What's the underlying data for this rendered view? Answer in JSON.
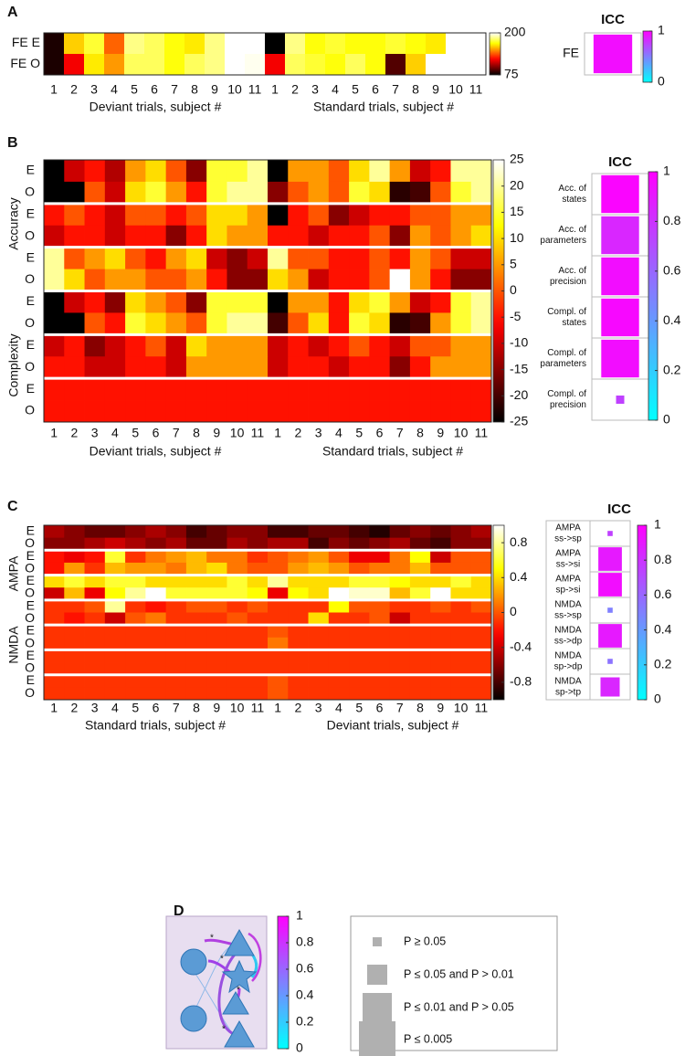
{
  "chart_data": [
    {
      "type": "heatmap",
      "panel_label": "A",
      "colormap": "hot",
      "row_labels": [
        "FE E",
        "FE O"
      ],
      "categories": [
        "1",
        "2",
        "3",
        "4",
        "5",
        "6",
        "7",
        "8",
        "9",
        "10",
        "11",
        "1",
        "2",
        "3",
        "4",
        "5",
        "6",
        "7",
        "8",
        "9",
        "10",
        "11"
      ],
      "x_group_labels": [
        "Deviant trials, subject #",
        "Standard trials, subject #"
      ],
      "row_separators": false,
      "values": [
        [
          80,
          160,
          175,
          140,
          185,
          180,
          170,
          165,
          185,
          200,
          200,
          75,
          185,
          170,
          175,
          170,
          170,
          175,
          170,
          165,
          200,
          200
        ],
        [
          80,
          120,
          165,
          150,
          180,
          180,
          170,
          180,
          185,
          200,
          198,
          120,
          180,
          175,
          170,
          180,
          170,
          90,
          160,
          200,
          200,
          200
        ]
      ],
      "zlim": [
        75,
        200
      ],
      "zticks": [
        75,
        200
      ]
    },
    {
      "type": "icc",
      "title": "ICC",
      "colormap": "cool",
      "labels": [
        [
          "FE"
        ]
      ],
      "values": [
        0.95
      ],
      "p_class": [
        3
      ],
      "clim": [
        0,
        1
      ],
      "cticks": [
        0,
        1
      ]
    },
    {
      "type": "heatmap",
      "panel_label": "B",
      "colormap": "hot",
      "row_labels": [
        "E",
        "O",
        "E",
        "O",
        "E",
        "O",
        "E",
        "O",
        "E",
        "O",
        "E",
        "O"
      ],
      "row_group_labels": [
        "Accuracy",
        "Complexity"
      ],
      "categories": [
        "1",
        "2",
        "3",
        "4",
        "5",
        "6",
        "7",
        "8",
        "9",
        "10",
        "11",
        "1",
        "2",
        "3",
        "4",
        "5",
        "6",
        "7",
        "8",
        "9",
        "10",
        "11"
      ],
      "x_group_labels": [
        "Deviant trials, subject #",
        "Standard trials, subject #"
      ],
      "row_separators": true,
      "values": [
        [
          -25,
          -10,
          -5,
          -12,
          5,
          10,
          0,
          -15,
          15,
          15,
          20,
          -25,
          5,
          5,
          0,
          10,
          20,
          5,
          -10,
          -5,
          20,
          20
        ],
        [
          -25,
          -25,
          0,
          -10,
          10,
          15,
          5,
          -5,
          15,
          20,
          20,
          -15,
          0,
          5,
          0,
          15,
          10,
          -22,
          -20,
          0,
          15,
          20
        ],
        [
          -5,
          0,
          -5,
          -10,
          0,
          0,
          -5,
          0,
          10,
          10,
          5,
          -25,
          -5,
          0,
          -15,
          -10,
          -5,
          -5,
          0,
          0,
          5,
          5
        ],
        [
          -10,
          -5,
          -5,
          -10,
          -5,
          -5,
          -15,
          -5,
          10,
          5,
          5,
          -5,
          -5,
          -10,
          -5,
          -5,
          0,
          -15,
          5,
          0,
          5,
          10
        ],
        [
          20,
          0,
          5,
          10,
          0,
          -5,
          5,
          10,
          -10,
          -15,
          -10,
          20,
          0,
          0,
          -5,
          -5,
          0,
          -5,
          5,
          0,
          -10,
          -10
        ],
        [
          20,
          10,
          0,
          5,
          5,
          0,
          0,
          5,
          -5,
          -15,
          -15,
          10,
          5,
          -10,
          -5,
          -5,
          0,
          25,
          5,
          -5,
          -15,
          -15
        ],
        [
          -25,
          -10,
          -5,
          -15,
          10,
          5,
          0,
          -15,
          15,
          15,
          15,
          -25,
          5,
          5,
          -5,
          10,
          15,
          5,
          -10,
          -5,
          15,
          20
        ],
        [
          -25,
          -25,
          0,
          -5,
          15,
          10,
          5,
          0,
          15,
          20,
          20,
          -20,
          0,
          10,
          -5,
          15,
          10,
          -22,
          -20,
          5,
          15,
          20
        ],
        [
          -10,
          -5,
          -15,
          -10,
          -5,
          0,
          -10,
          10,
          5,
          5,
          5,
          -10,
          -5,
          -10,
          -5,
          0,
          -5,
          -10,
          0,
          0,
          5,
          5
        ],
        [
          -5,
          -5,
          -10,
          -10,
          -5,
          -5,
          -10,
          5,
          5,
          5,
          5,
          -10,
          -5,
          -5,
          -10,
          -5,
          -5,
          -15,
          -5,
          5,
          5,
          5
        ],
        [
          -5,
          -5,
          -5,
          -5,
          -5,
          -5,
          -5,
          -5,
          -5,
          -5,
          -5,
          -5,
          -5,
          -5,
          -5,
          -5,
          -5,
          -5,
          -5,
          -5,
          -5,
          -5
        ],
        [
          -5,
          -5,
          -5,
          -5,
          -5,
          -5,
          -5,
          -5,
          -5,
          -5,
          -5,
          -5,
          -5,
          -5,
          -5,
          -5,
          -5,
          -5,
          -5,
          -5,
          -5,
          -5
        ]
      ],
      "zlim": [
        -25,
        25
      ],
      "zticks": [
        -25,
        -20,
        -15,
        -10,
        -5,
        0,
        5,
        10,
        15,
        20,
        25
      ]
    },
    {
      "type": "icc",
      "title": "ICC",
      "colormap": "cool",
      "labels": [
        [
          "Acc. of",
          "states"
        ],
        [
          "Acc. of",
          "parameters"
        ],
        [
          "Acc. of",
          "precision"
        ],
        [
          "Compl. of",
          "states"
        ],
        [
          "Compl. of",
          "parameters"
        ],
        [
          "Compl. of",
          "precision"
        ]
      ],
      "values": [
        0.98,
        0.85,
        0.95,
        0.97,
        0.95,
        0.75
      ],
      "p_class": [
        3,
        3,
        3,
        3,
        3,
        0
      ],
      "clim": [
        0,
        1
      ],
      "cticks": [
        0,
        0.2,
        0.4,
        0.6,
        0.8,
        1
      ]
    },
    {
      "type": "heatmap",
      "panel_label": "C",
      "colormap": "hot",
      "row_labels": [
        "E",
        "O",
        "E",
        "O",
        "E",
        "O",
        "E",
        "O",
        "E",
        "O",
        "E",
        "O",
        "E",
        "O"
      ],
      "row_group_labels": [
        "AMPA",
        "NMDA"
      ],
      "categories": [
        "1",
        "2",
        "3",
        "4",
        "5",
        "6",
        "7",
        "8",
        "9",
        "10",
        "11",
        "1",
        "2",
        "3",
        "4",
        "5",
        "6",
        "7",
        "8",
        "9",
        "10",
        "11"
      ],
      "x_group_labels": [
        "Standard trials, subject #",
        "Deviant trials, subject #"
      ],
      "row_separators": true,
      "values": [
        [
          -0.5,
          -0.6,
          -0.7,
          -0.7,
          -0.6,
          -0.5,
          -0.6,
          -0.8,
          -0.7,
          -0.6,
          -0.6,
          -0.8,
          -0.8,
          -0.7,
          -0.7,
          -0.8,
          -0.9,
          -0.7,
          -0.6,
          -0.7,
          -0.6,
          -0.5
        ],
        [
          -0.6,
          -0.6,
          -0.5,
          -0.4,
          -0.5,
          -0.6,
          -0.5,
          -0.7,
          -0.7,
          -0.5,
          -0.6,
          -0.5,
          -0.5,
          -0.8,
          -0.6,
          -0.7,
          -0.6,
          -0.5,
          -0.7,
          -0.8,
          -0.6,
          -0.6
        ],
        [
          -0.2,
          -0.3,
          -0.2,
          0.6,
          -0.1,
          0.1,
          0.2,
          0.3,
          0.1,
          0.1,
          -0.1,
          0,
          0.1,
          0.2,
          0,
          -0.3,
          -0.3,
          0.1,
          0.5,
          -0.4,
          0,
          0
        ],
        [
          -0.2,
          0.2,
          -0.1,
          0.3,
          0.2,
          0.2,
          0.1,
          0.3,
          0.4,
          0.1,
          0,
          0,
          0.2,
          0.3,
          0.2,
          0,
          0.1,
          0.1,
          0.3,
          0,
          0,
          0
        ],
        [
          0.4,
          0.6,
          0.4,
          0.6,
          0.6,
          0.4,
          0.4,
          0.4,
          0.4,
          0.6,
          0.4,
          0.8,
          0.4,
          0.4,
          0.4,
          0.6,
          0.6,
          0.5,
          0.4,
          0.4,
          0.6,
          0.4
        ],
        [
          -0.4,
          0.3,
          -0.3,
          0.5,
          0.8,
          1,
          0.6,
          0.6,
          0.6,
          0.6,
          0.5,
          -0.3,
          0.5,
          0.4,
          1,
          0.9,
          0.9,
          0.3,
          0.6,
          1,
          0.4,
          0.4
        ],
        [
          -0.1,
          -0.1,
          0,
          0.8,
          -0.1,
          -0.2,
          -0.1,
          0,
          0,
          -0.1,
          0,
          -0.1,
          -0.1,
          -0.1,
          0.5,
          0,
          0,
          -0.1,
          -0.1,
          0,
          -0.1,
          0
        ],
        [
          -0.1,
          -0.2,
          -0.1,
          -0.4,
          0,
          0.1,
          -0.1,
          -0.1,
          -0.1,
          0,
          -0.1,
          -0.1,
          -0.1,
          0.4,
          -0.1,
          -0.1,
          0,
          -0.4,
          -0.1,
          -0.1,
          -0.1,
          -0.1
        ],
        [
          -0.1,
          -0.1,
          -0.1,
          -0.1,
          -0.1,
          -0.1,
          -0.1,
          -0.1,
          -0.1,
          -0.1,
          -0.1,
          0,
          -0.1,
          -0.1,
          -0.1,
          -0.1,
          -0.1,
          -0.1,
          -0.1,
          -0.1,
          -0.1,
          -0.1
        ],
        [
          -0.1,
          -0.1,
          -0.1,
          -0.1,
          -0.1,
          -0.1,
          -0.1,
          -0.1,
          -0.1,
          -0.1,
          -0.1,
          0.1,
          -0.1,
          -0.1,
          -0.1,
          -0.1,
          -0.1,
          -0.1,
          -0.1,
          -0.1,
          -0.1,
          -0.1
        ],
        [
          -0.1,
          -0.1,
          -0.1,
          -0.1,
          -0.1,
          -0.1,
          -0.1,
          -0.1,
          -0.1,
          -0.1,
          -0.1,
          -0.1,
          -0.1,
          -0.1,
          -0.1,
          -0.1,
          -0.1,
          -0.1,
          -0.1,
          -0.1,
          -0.1,
          -0.1
        ],
        [
          -0.1,
          -0.1,
          -0.1,
          -0.1,
          -0.1,
          -0.1,
          -0.1,
          -0.1,
          -0.1,
          -0.1,
          -0.1,
          -0.1,
          -0.1,
          -0.1,
          -0.1,
          -0.1,
          -0.1,
          -0.1,
          -0.1,
          -0.1,
          -0.1,
          -0.1
        ],
        [
          -0.1,
          -0.1,
          -0.1,
          -0.1,
          -0.1,
          -0.1,
          -0.1,
          -0.1,
          -0.1,
          -0.1,
          -0.1,
          0,
          -0.1,
          -0.1,
          -0.1,
          -0.1,
          -0.1,
          -0.1,
          -0.1,
          -0.1,
          -0.1,
          -0.1
        ],
        [
          -0.1,
          -0.1,
          -0.1,
          -0.1,
          -0.1,
          -0.1,
          -0.1,
          -0.1,
          -0.1,
          -0.1,
          -0.1,
          0,
          -0.1,
          -0.1,
          -0.1,
          -0.1,
          -0.1,
          -0.1,
          -0.1,
          -0.1,
          -0.1,
          -0.1
        ]
      ],
      "zlim": [
        -1,
        1
      ],
      "zticks": [
        -0.8,
        -0.4,
        0,
        0.4,
        0.8
      ]
    },
    {
      "type": "icc",
      "title": "ICC",
      "colormap": "cool",
      "labels": [
        [
          "AMPA",
          "ss->sp"
        ],
        [
          "AMPA",
          "ss->si"
        ],
        [
          "AMPA",
          "sp->si"
        ],
        [
          "NMDA",
          "ss->sp"
        ],
        [
          "NMDA",
          "ss->dp"
        ],
        [
          "NMDA",
          "sp->dp"
        ],
        [
          "NMDA",
          "sp->tp"
        ]
      ],
      "values": [
        0.75,
        0.9,
        0.95,
        0.5,
        0.9,
        0.55,
        0.85
      ],
      "p_class": [
        0,
        3,
        3,
        0,
        3,
        0,
        2
      ],
      "clim": [
        0,
        1
      ],
      "cticks": [
        0,
        0.2,
        0.4,
        0.6,
        0.8,
        1
      ]
    },
    {
      "type": "key",
      "panel_label": "D",
      "colormap": "cool",
      "annotations": [
        "*",
        "*",
        "*",
        "*"
      ],
      "clim": [
        0,
        1
      ],
      "cticks": [
        0,
        0.2,
        0.4,
        0.6,
        0.8,
        1
      ],
      "legend": [
        "P ≥ 0.05",
        "P ≤ 0.05 and P > 0.01",
        "P ≤ 0.01 and P > 0.05",
        "P ≤ 0.005"
      ]
    }
  ]
}
